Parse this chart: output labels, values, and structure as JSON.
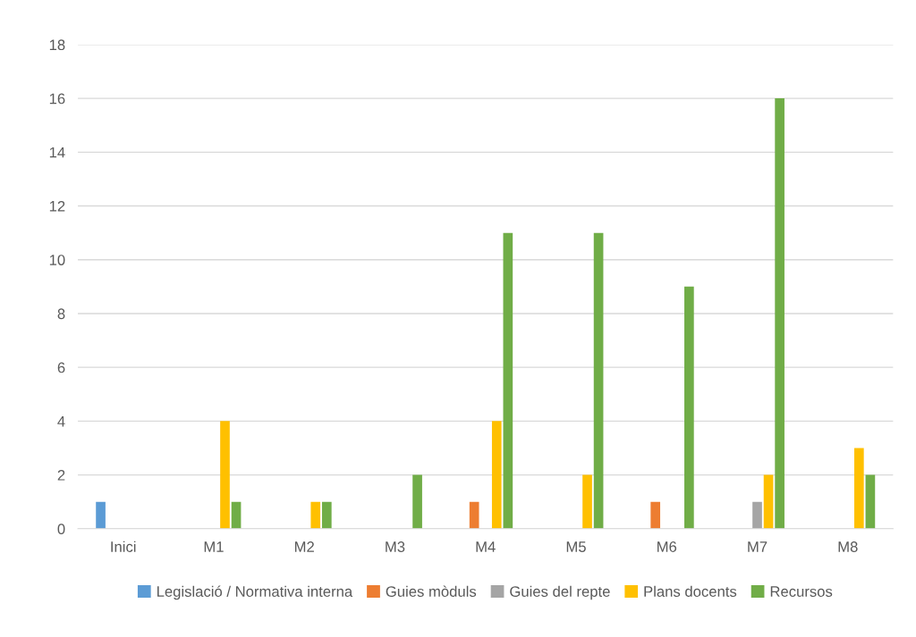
{
  "chart_data": {
    "type": "bar",
    "categories": [
      "Inici",
      "M1",
      "M2",
      "M3",
      "M4",
      "M5",
      "M6",
      "M7",
      "M8"
    ],
    "series": [
      {
        "name": "Legislació / Normativa interna",
        "color": "#5b9bd5",
        "values": [
          1,
          0,
          0,
          0,
          0,
          0,
          0,
          0,
          0
        ]
      },
      {
        "name": "Guies mòduls",
        "color": "#ed7d31",
        "values": [
          0,
          0,
          0,
          0,
          1,
          0,
          1,
          0,
          0
        ]
      },
      {
        "name": "Guies del repte",
        "color": "#a5a5a5",
        "values": [
          0,
          0,
          0,
          0,
          0,
          0,
          0,
          1,
          0
        ]
      },
      {
        "name": "Plans docents",
        "color": "#ffc000",
        "values": [
          0,
          4,
          1,
          0,
          4,
          2,
          0,
          2,
          3
        ]
      },
      {
        "name": "Recursos",
        "color": "#70ad47",
        "values": [
          0,
          1,
          1,
          2,
          11,
          11,
          9,
          16,
          2
        ]
      }
    ],
    "ylim": [
      0,
      18
    ],
    "yticks": [
      0,
      2,
      4,
      6,
      8,
      10,
      12,
      14,
      16,
      18
    ],
    "grid": "y",
    "legend": "bottom"
  }
}
